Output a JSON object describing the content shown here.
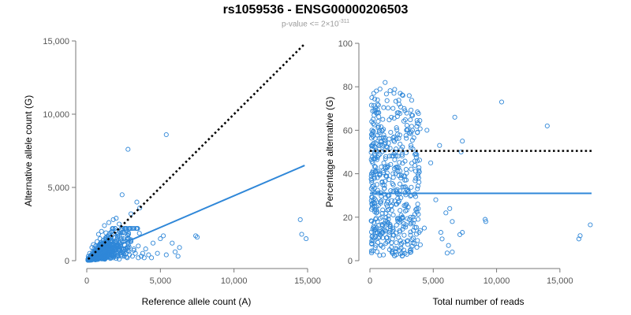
{
  "header": {
    "title": "rs1059536 - ENSG00000206503",
    "subtitle_base": "p-value <= 2×10",
    "subtitle_exp": "-311"
  },
  "colors": {
    "points": "#2f87d8",
    "fit": "#2f87d8",
    "reference": "#000000",
    "axis": "#777777"
  },
  "chart_data": [
    {
      "type": "scatter",
      "xlabel": "Reference allele count (A)",
      "ylabel": "Alternative allele count (G)",
      "xlim": [
        0,
        15000
      ],
      "ylim": [
        0,
        15000
      ],
      "xticks": [
        0,
        5000,
        10000,
        15000
      ],
      "xtick_labels": [
        "0",
        "5,000",
        "10,000",
        "15,000"
      ],
      "yticks": [
        0,
        5000,
        10000,
        15000
      ],
      "ytick_labels": [
        "0",
        "5,000",
        "10,000",
        "15,000"
      ],
      "reference_line": {
        "style": "dotted",
        "x": [
          100,
          14800
        ],
        "y": [
          100,
          14800
        ]
      },
      "fit_line": {
        "style": "solid",
        "x": [
          200,
          14800
        ],
        "y": [
          200,
          6500
        ]
      },
      "points": [
        [
          2800,
          7600
        ],
        [
          5400,
          8600
        ],
        [
          14500,
          2800
        ],
        [
          14600,
          1800
        ],
        [
          14900,
          1500
        ],
        [
          2400,
          4500
        ],
        [
          3400,
          4000
        ],
        [
          3600,
          3600
        ],
        [
          3000,
          3200
        ],
        [
          2000,
          2900
        ],
        [
          2200,
          2500
        ],
        [
          2600,
          2200
        ],
        [
          1800,
          2800
        ],
        [
          1500,
          2600
        ],
        [
          1200,
          2400
        ],
        [
          1000,
          2000
        ],
        [
          800,
          1800
        ],
        [
          1300,
          1900
        ],
        [
          1700,
          1700
        ],
        [
          2100,
          1800
        ],
        [
          2500,
          1500
        ],
        [
          3000,
          1300
        ],
        [
          3500,
          1000
        ],
        [
          4000,
          800
        ],
        [
          4500,
          1200
        ],
        [
          5000,
          1500
        ],
        [
          5200,
          1700
        ],
        [
          5800,
          1200
        ],
        [
          6000,
          600
        ],
        [
          6300,
          900
        ],
        [
          7400,
          1700
        ],
        [
          7500,
          1600
        ],
        [
          4800,
          500
        ],
        [
          5400,
          400
        ],
        [
          6200,
          300
        ],
        [
          3800,
          500
        ],
        [
          3200,
          700
        ],
        [
          2800,
          900
        ],
        [
          2300,
          1100
        ],
        [
          1900,
          1300
        ],
        [
          1500,
          1400
        ],
        [
          1100,
          1200
        ],
        [
          900,
          1500
        ],
        [
          700,
          1300
        ],
        [
          600,
          1000
        ],
        [
          500,
          800
        ],
        [
          400,
          600
        ],
        [
          300,
          400
        ],
        [
          200,
          200
        ],
        [
          350,
          900
        ],
        [
          450,
          1100
        ],
        [
          550,
          700
        ],
        [
          650,
          500
        ],
        [
          750,
          300
        ],
        [
          850,
          600
        ],
        [
          950,
          400
        ],
        [
          1050,
          800
        ],
        [
          1150,
          600
        ],
        [
          1250,
          1000
        ],
        [
          1350,
          700
        ],
        [
          1450,
          500
        ],
        [
          1550,
          900
        ],
        [
          1650,
          1100
        ],
        [
          1750,
          600
        ],
        [
          1850,
          400
        ],
        [
          1950,
          800
        ],
        [
          2050,
          500
        ],
        [
          2150,
          300
        ],
        [
          2250,
          700
        ],
        [
          2350,
          400
        ],
        [
          2450,
          600
        ],
        [
          2550,
          300
        ],
        [
          2650,
          500
        ],
        [
          2750,
          200
        ],
        [
          2900,
          400
        ],
        [
          3100,
          300
        ],
        [
          3300,
          500
        ],
        [
          3500,
          200
        ],
        [
          3700,
          300
        ],
        [
          3900,
          200
        ],
        [
          4200,
          400
        ],
        [
          4400,
          200
        ],
        [
          300,
          150
        ],
        [
          250,
          100
        ],
        [
          150,
          50
        ],
        [
          100,
          300
        ],
        [
          200,
          500
        ],
        [
          400,
          250
        ],
        [
          600,
          300
        ],
        [
          800,
          200
        ],
        [
          1000,
          300
        ],
        [
          1200,
          150
        ],
        [
          1400,
          250
        ],
        [
          1600,
          150
        ],
        [
          1800,
          200
        ],
        [
          2000,
          150
        ],
        [
          2200,
          100
        ],
        [
          500,
          150
        ],
        [
          700,
          100
        ],
        [
          900,
          150
        ]
      ]
    },
    {
      "type": "scatter",
      "xlabel": "Total number of reads",
      "ylabel": "Percentage alternative (G)",
      "xlim": [
        0,
        17500
      ],
      "ylim": [
        0,
        100
      ],
      "xticks": [
        0,
        5000,
        10000,
        15000
      ],
      "xtick_labels": [
        "0",
        "5,000",
        "10,000",
        "15,000"
      ],
      "yticks": [
        0,
        20,
        40,
        60,
        80,
        100
      ],
      "ytick_labels": [
        "0",
        "20",
        "40",
        "60",
        "80",
        "100"
      ],
      "reference_line": {
        "style": "dotted",
        "x": [
          0,
          17500
        ],
        "y": [
          50.5,
          50.5
        ]
      },
      "fit_line": {
        "style": "solid",
        "x": [
          0,
          17500
        ],
        "y": [
          31,
          31
        ]
      },
      "points": [
        [
          10400,
          73
        ],
        [
          14000,
          62
        ],
        [
          17400,
          16.5
        ],
        [
          16600,
          11.5
        ],
        [
          16500,
          10
        ],
        [
          9100,
          19
        ],
        [
          9150,
          18
        ],
        [
          7300,
          55
        ],
        [
          7200,
          50
        ],
        [
          6700,
          66
        ],
        [
          6300,
          24
        ],
        [
          6500,
          18
        ],
        [
          6000,
          22
        ],
        [
          7100,
          12
        ],
        [
          7300,
          13
        ],
        [
          5700,
          10
        ],
        [
          5600,
          13
        ],
        [
          6200,
          7
        ],
        [
          6100,
          3.5
        ],
        [
          6500,
          4
        ],
        [
          5500,
          53
        ],
        [
          5200,
          28
        ],
        [
          4800,
          45
        ],
        [
          4500,
          60
        ],
        [
          4300,
          15
        ],
        [
          2600,
          76
        ],
        [
          2300,
          72
        ],
        [
          1900,
          77
        ],
        [
          1200,
          82
        ],
        [
          800,
          79
        ],
        [
          600,
          74
        ],
        [
          300,
          77
        ],
        [
          150,
          75
        ],
        [
          3300,
          67
        ],
        [
          2700,
          70
        ]
      ],
      "dense_region": {
        "x": [
          100,
          4000
        ],
        "y": [
          2,
          78
        ],
        "count": 520
      }
    }
  ]
}
